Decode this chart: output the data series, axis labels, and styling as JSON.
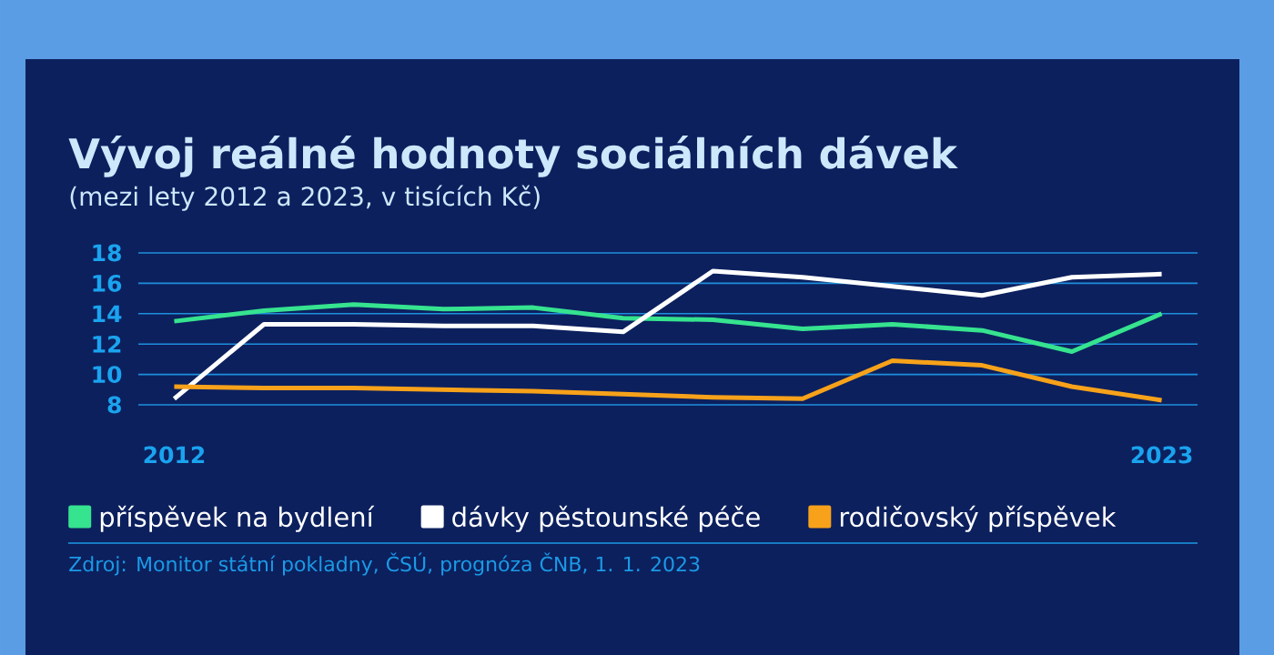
{
  "chart_data": {
    "type": "line",
    "title": "Vývoj reálné hodnoty sociálních dávek",
    "subtitle": "(mezi lety 2012 a 2023, v tisících Kč)",
    "x": [
      2012,
      2013,
      2014,
      2015,
      2016,
      2017,
      2018,
      2019,
      2020,
      2021,
      2022,
      2023
    ],
    "series": [
      {
        "name": "příspěvek na bydlení",
        "color": "#36e38f",
        "values": [
          13.5,
          14.2,
          14.6,
          14.3,
          14.4,
          13.7,
          13.6,
          13.0,
          13.3,
          12.9,
          11.5,
          14.0
        ]
      },
      {
        "name": "dávky pěstounské péče",
        "color": "#ffffff",
        "values": [
          8.4,
          13.3,
          13.3,
          13.2,
          13.2,
          12.8,
          16.8,
          16.4,
          15.8,
          15.2,
          16.4,
          16.6
        ]
      },
      {
        "name": "rodičovský příspěvek",
        "color": "#f7a21a",
        "values": [
          9.2,
          9.1,
          9.1,
          9.0,
          8.9,
          8.7,
          8.5,
          8.4,
          10.9,
          10.6,
          9.2,
          8.3
        ]
      }
    ],
    "xlim": [
      2011.6,
      2023.4
    ],
    "ylim": [
      8,
      18
    ],
    "xticks": [
      2012,
      2023
    ],
    "yticks": [
      8,
      10,
      12,
      14,
      16,
      18
    ],
    "grid": "y",
    "legend": "bottom",
    "line_style": "solid",
    "annotations": [
      "Zdroj: Monitor státní pokladny, ČSÚ, prognóza ČNB, 1. 1. 2023"
    ]
  }
}
